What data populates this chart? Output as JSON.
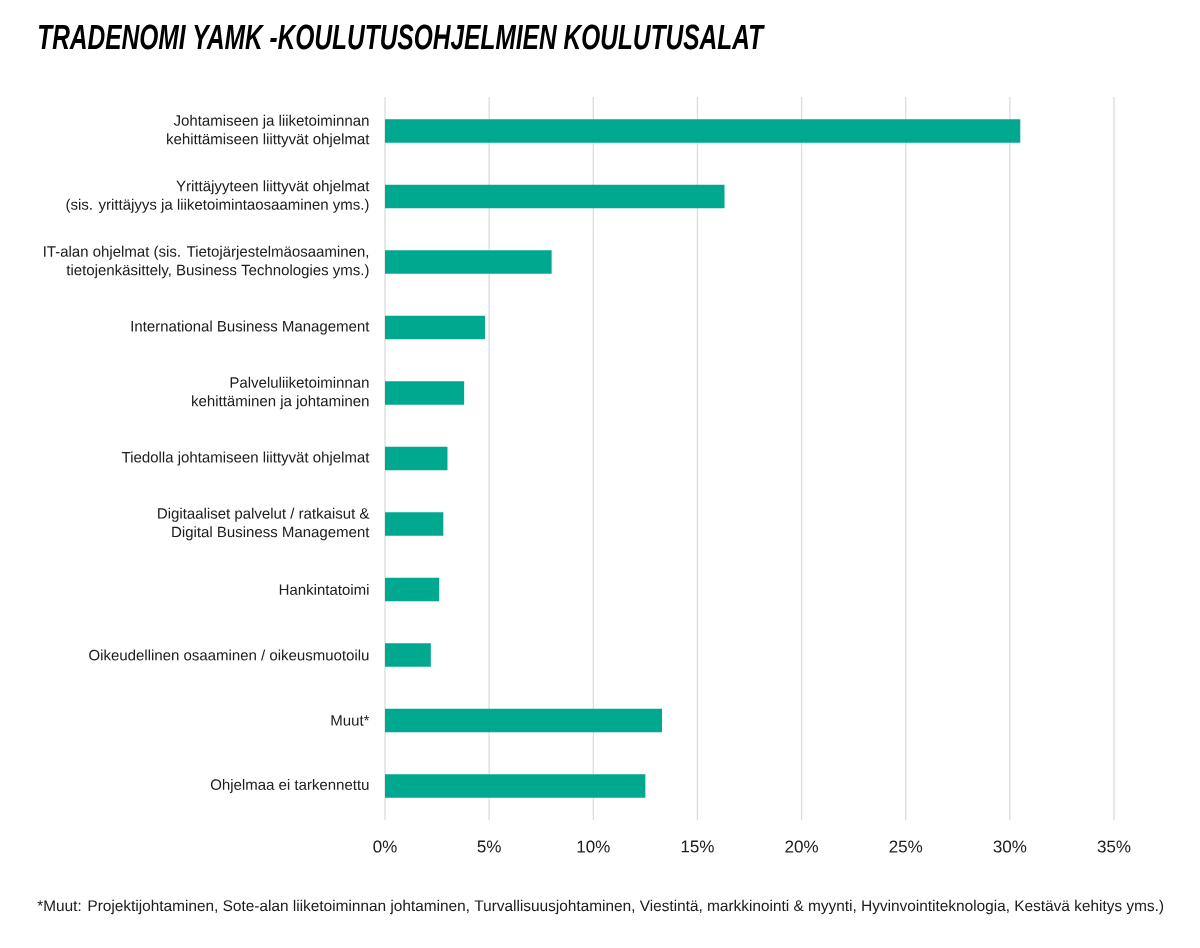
{
  "chart_data": {
    "type": "bar",
    "orientation": "horizontal",
    "title": "TRADENOMI YAMK -KOULUTUSOHJELMIEN KOULUTUSALAT",
    "categories": [
      "Johtamiseen ja liiketoiminnan\nkehittämiseen liittyvät ohjelmat",
      "Yrittäjyyteen liittyvät ohjelmat\n(sis. yrittäjyys ja liiketoimintaosaaminen yms.)",
      "IT-alan ohjelmat (sis. Tietojärjestelmäosaaminen,\ntietojenkäsittely, Business Technologies yms.)",
      "International Business Management",
      "Palveluliiketoiminnan\nkehittäminen ja johtaminen",
      "Tiedolla johtamiseen liittyvät ohjelmat",
      "Digitaaliset palvelut / ratkaisut &\nDigital Business Management",
      "Hankintatoimi",
      "Oikeudellinen osaaminen / oikeusmuotoilu",
      "Muut*",
      "Ohjelmaa ei tarkennettu"
    ],
    "values": [
      30.5,
      16.3,
      8.0,
      4.8,
      3.8,
      3.0,
      2.8,
      2.6,
      2.2,
      13.3,
      12.5
    ],
    "color": "#00a88f",
    "xlim": [
      0,
      35
    ],
    "xticks": [
      {
        "value": 0,
        "label": "0%"
      },
      {
        "value": 5,
        "label": "5%"
      },
      {
        "value": 10,
        "label": "10%"
      },
      {
        "value": 15,
        "label": "15%"
      },
      {
        "value": 20,
        "label": "20%"
      },
      {
        "value": 25,
        "label": "25%"
      },
      {
        "value": 30,
        "label": "30%"
      },
      {
        "value": 35,
        "label": "35%"
      }
    ],
    "grid": "x",
    "annotations": [
      "*Muut: Projektijohtaminen, Sote-alan liiketoiminnan johtaminen, Turvallisuusjohtaminen, Viestintä, markkinointi & myynti, Hyvinvointiteknologia, Kestävä kehitys yms.)"
    ]
  }
}
